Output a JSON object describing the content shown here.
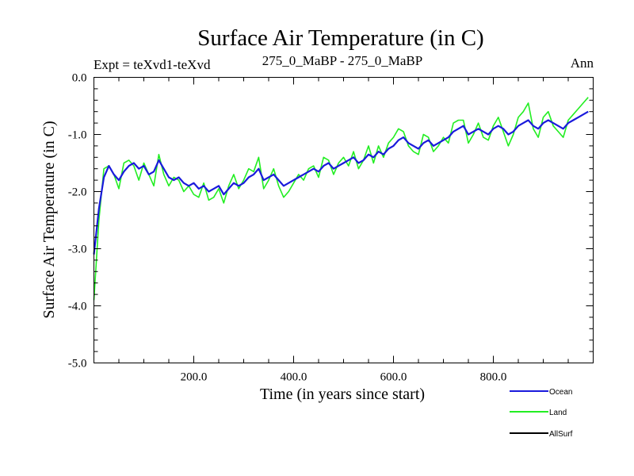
{
  "chart_data": {
    "type": "line",
    "title": "Surface Air Temperature (in C)",
    "subtitle_left": "Expt = teXvd1-teXvd",
    "subtitle_center": "275_0_MaBP - 275_0_MaBP",
    "subtitle_right": "Ann",
    "xlabel": "Time (in years since start)",
    "ylabel": "Surface Air Temperature (in C)",
    "xlim": [
      0,
      1000
    ],
    "ylim": [
      -5.0,
      0.0
    ],
    "x_ticks": [
      200,
      400,
      600,
      800
    ],
    "x_tick_labels": [
      "200.0",
      "400.0",
      "600.0",
      "800.0"
    ],
    "y_ticks": [
      0,
      -1,
      -2,
      -3,
      -4,
      -5
    ],
    "y_tick_labels": [
      "0.0",
      "-1.0",
      "-2.0",
      "-3.0",
      "-4.0",
      "-5.0"
    ],
    "grid": false,
    "legend_position": "bottom-right",
    "series": [
      {
        "name": "Ocean",
        "color": "#1a1adc",
        "x_step": 10,
        "values": [
          -3.1,
          -2.3,
          -1.75,
          -1.55,
          -1.7,
          -1.8,
          -1.65,
          -1.55,
          -1.5,
          -1.6,
          -1.55,
          -1.7,
          -1.65,
          -1.45,
          -1.6,
          -1.75,
          -1.8,
          -1.75,
          -1.85,
          -1.9,
          -1.85,
          -1.95,
          -1.9,
          -2.0,
          -1.95,
          -1.9,
          -2.05,
          -1.95,
          -1.85,
          -1.9,
          -1.85,
          -1.75,
          -1.7,
          -1.6,
          -1.8,
          -1.75,
          -1.7,
          -1.8,
          -1.9,
          -1.85,
          -1.8,
          -1.75,
          -1.7,
          -1.65,
          -1.6,
          -1.65,
          -1.55,
          -1.5,
          -1.6,
          -1.55,
          -1.5,
          -1.45,
          -1.4,
          -1.5,
          -1.45,
          -1.35,
          -1.4,
          -1.3,
          -1.35,
          -1.25,
          -1.2,
          -1.1,
          -1.05,
          -1.15,
          -1.2,
          -1.25,
          -1.15,
          -1.1,
          -1.2,
          -1.15,
          -1.1,
          -1.05,
          -0.95,
          -0.9,
          -0.85,
          -1.0,
          -0.95,
          -0.9,
          -0.95,
          -1.0,
          -0.9,
          -0.85,
          -0.9,
          -1.0,
          -0.95,
          -0.85,
          -0.8,
          -0.75,
          -0.85,
          -0.9,
          -0.8,
          -0.75,
          -0.8,
          -0.85,
          -0.9,
          -0.8,
          -0.75,
          -0.7,
          -0.65,
          -0.6
        ]
      },
      {
        "name": "Land",
        "color": "#22ee22",
        "x_step": 10,
        "values": [
          -3.9,
          -2.5,
          -1.6,
          -1.55,
          -1.7,
          -1.95,
          -1.5,
          -1.45,
          -1.55,
          -1.8,
          -1.5,
          -1.7,
          -1.9,
          -1.35,
          -1.7,
          -1.9,
          -1.75,
          -1.8,
          -2.0,
          -1.9,
          -2.05,
          -2.1,
          -1.85,
          -2.15,
          -2.1,
          -1.95,
          -2.2,
          -1.9,
          -1.7,
          -1.95,
          -1.8,
          -1.6,
          -1.65,
          -1.4,
          -1.95,
          -1.8,
          -1.6,
          -1.9,
          -2.1,
          -2.0,
          -1.85,
          -1.7,
          -1.8,
          -1.6,
          -1.55,
          -1.75,
          -1.4,
          -1.45,
          -1.7,
          -1.5,
          -1.4,
          -1.55,
          -1.3,
          -1.6,
          -1.45,
          -1.2,
          -1.5,
          -1.2,
          -1.4,
          -1.15,
          -1.05,
          -0.9,
          -0.95,
          -1.2,
          -1.3,
          -1.35,
          -1.0,
          -1.05,
          -1.3,
          -1.2,
          -1.05,
          -1.15,
          -0.8,
          -0.75,
          -0.75,
          -1.15,
          -1.0,
          -0.8,
          -1.05,
          -1.1,
          -0.85,
          -0.7,
          -0.95,
          -1.2,
          -1.0,
          -0.7,
          -0.6,
          -0.45,
          -0.9,
          -1.05,
          -0.7,
          -0.6,
          -0.85,
          -0.95,
          -1.05,
          -0.75,
          -0.65,
          -0.55,
          -0.45,
          -0.35
        ]
      },
      {
        "name": "AllSurf",
        "color": "#000000",
        "x_step": 10,
        "values": []
      }
    ]
  }
}
